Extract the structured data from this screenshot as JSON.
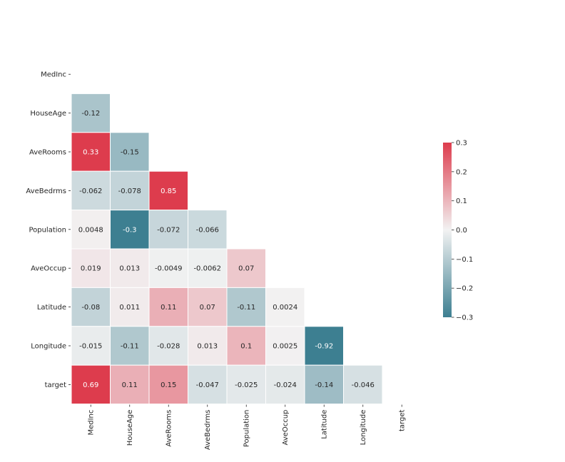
{
  "chart_data": {
    "type": "heatmap",
    "title": "",
    "xlabel": "",
    "ylabel": "",
    "mask": "upper-triangle-including-diagonal",
    "labels": [
      "MedInc",
      "HouseAge",
      "AveRooms",
      "AveBedrms",
      "Population",
      "AveOccup",
      "Latitude",
      "Longitude",
      "target"
    ],
    "cells": [
      {
        "row": 1,
        "col": 0,
        "value": -0.12,
        "label": "-0.12"
      },
      {
        "row": 2,
        "col": 0,
        "value": 0.33,
        "label": "0.33"
      },
      {
        "row": 2,
        "col": 1,
        "value": -0.15,
        "label": "-0.15"
      },
      {
        "row": 3,
        "col": 0,
        "value": -0.062,
        "label": "-0.062"
      },
      {
        "row": 3,
        "col": 1,
        "value": -0.078,
        "label": "-0.078"
      },
      {
        "row": 3,
        "col": 2,
        "value": 0.85,
        "label": "0.85"
      },
      {
        "row": 4,
        "col": 0,
        "value": 0.0048,
        "label": "0.0048"
      },
      {
        "row": 4,
        "col": 1,
        "value": -0.3,
        "label": "-0.3"
      },
      {
        "row": 4,
        "col": 2,
        "value": -0.072,
        "label": "-0.072"
      },
      {
        "row": 4,
        "col": 3,
        "value": -0.066,
        "label": "-0.066"
      },
      {
        "row": 5,
        "col": 0,
        "value": 0.019,
        "label": "0.019"
      },
      {
        "row": 5,
        "col": 1,
        "value": 0.013,
        "label": "0.013"
      },
      {
        "row": 5,
        "col": 2,
        "value": -0.0049,
        "label": "-0.0049"
      },
      {
        "row": 5,
        "col": 3,
        "value": -0.0062,
        "label": "-0.0062"
      },
      {
        "row": 5,
        "col": 4,
        "value": 0.07,
        "label": "0.07"
      },
      {
        "row": 6,
        "col": 0,
        "value": -0.08,
        "label": "-0.08"
      },
      {
        "row": 6,
        "col": 1,
        "value": 0.011,
        "label": "0.011"
      },
      {
        "row": 6,
        "col": 2,
        "value": 0.11,
        "label": "0.11"
      },
      {
        "row": 6,
        "col": 3,
        "value": 0.07,
        "label": "0.07"
      },
      {
        "row": 6,
        "col": 4,
        "value": -0.11,
        "label": "-0.11"
      },
      {
        "row": 6,
        "col": 5,
        "value": 0.0024,
        "label": "0.0024"
      },
      {
        "row": 7,
        "col": 0,
        "value": -0.015,
        "label": "-0.015"
      },
      {
        "row": 7,
        "col": 1,
        "value": -0.11,
        "label": "-0.11"
      },
      {
        "row": 7,
        "col": 2,
        "value": -0.028,
        "label": "-0.028"
      },
      {
        "row": 7,
        "col": 3,
        "value": 0.013,
        "label": "0.013"
      },
      {
        "row": 7,
        "col": 4,
        "value": 0.1,
        "label": "0.1"
      },
      {
        "row": 7,
        "col": 5,
        "value": 0.0025,
        "label": "0.0025"
      },
      {
        "row": 7,
        "col": 6,
        "value": -0.92,
        "label": "-0.92"
      },
      {
        "row": 8,
        "col": 0,
        "value": 0.69,
        "label": "0.69"
      },
      {
        "row": 8,
        "col": 1,
        "value": 0.11,
        "label": "0.11"
      },
      {
        "row": 8,
        "col": 2,
        "value": 0.15,
        "label": "0.15"
      },
      {
        "row": 8,
        "col": 3,
        "value": -0.047,
        "label": "-0.047"
      },
      {
        "row": 8,
        "col": 4,
        "value": -0.025,
        "label": "-0.025"
      },
      {
        "row": 8,
        "col": 5,
        "value": -0.024,
        "label": "-0.024"
      },
      {
        "row": 8,
        "col": 6,
        "value": -0.14,
        "label": "-0.14"
      },
      {
        "row": 8,
        "col": 7,
        "value": -0.046,
        "label": "-0.046"
      }
    ],
    "colorbar": {
      "vmin": -0.3,
      "vmax": 0.3,
      "ticks": [
        0.3,
        0.2,
        0.1,
        0.0,
        -0.1,
        -0.2,
        -0.3
      ],
      "tick_labels": [
        "0.3",
        "0.2",
        "0.1",
        "0.0",
        "−0.1",
        "−0.2",
        "−0.3"
      ],
      "colormap": "diverging",
      "color_negative": "#3d7f91",
      "color_center": "#f2f2f2",
      "color_positive": "#dd3c4d"
    },
    "cell_edge_color": "#ffffff",
    "grid": false,
    "legend": "colorbar-right"
  }
}
